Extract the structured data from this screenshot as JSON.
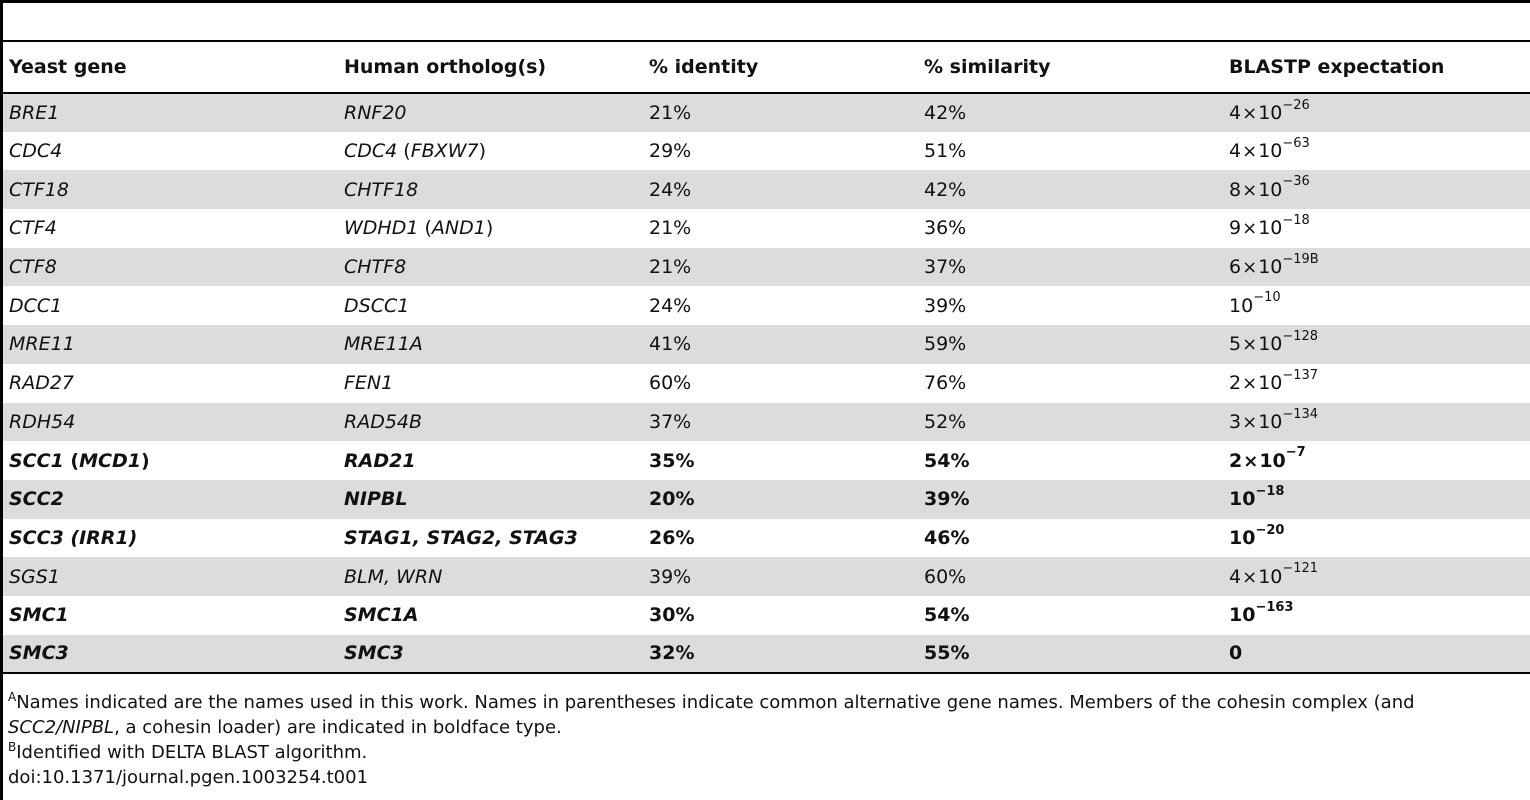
{
  "table": {
    "headers": [
      "Yeast gene",
      "Human ortholog(s)",
      "% identity",
      "% similarity",
      "BLASTP expectation"
    ],
    "rows": [
      {
        "yeast": "BRE1",
        "human": [
          {
            "t": "RNF20",
            "i": true
          }
        ],
        "identity": "21%",
        "similarity": "42%",
        "mant": "4",
        "exp": "−26",
        "sup": "",
        "bold": false
      },
      {
        "yeast": "CDC4",
        "human": [
          {
            "t": "CDC4",
            "i": true
          },
          {
            "t": " (",
            "i": false
          },
          {
            "t": "FBXW7",
            "i": true
          },
          {
            "t": ")",
            "i": false
          }
        ],
        "identity": "29%",
        "similarity": "51%",
        "mant": "4",
        "exp": "−63",
        "sup": "",
        "bold": false
      },
      {
        "yeast": "CTF18",
        "human": [
          {
            "t": "CHTF18",
            "i": true
          }
        ],
        "identity": "24%",
        "similarity": "42%",
        "mant": "8",
        "exp": "−36",
        "sup": "",
        "bold": false
      },
      {
        "yeast": "CTF4",
        "human": [
          {
            "t": "WDHD1",
            "i": true
          },
          {
            "t": " (",
            "i": false
          },
          {
            "t": "AND1",
            "i": true
          },
          {
            "t": ")",
            "i": false
          }
        ],
        "identity": "21%",
        "similarity": "36%",
        "mant": "9",
        "exp": "−18",
        "sup": "",
        "bold": false
      },
      {
        "yeast": "CTF8",
        "human": [
          {
            "t": "CHTF8",
            "i": true
          }
        ],
        "identity": "21%",
        "similarity": "37%",
        "mant": "6",
        "exp": "−19",
        "sup": "B",
        "bold": false
      },
      {
        "yeast": "DCC1",
        "human": [
          {
            "t": "DSCC1",
            "i": true
          }
        ],
        "identity": "24%",
        "similarity": "39%",
        "mant": "",
        "exp": "−10",
        "sup": "",
        "bold": false
      },
      {
        "yeast": "MRE11",
        "human": [
          {
            "t": "MRE11A",
            "i": true
          }
        ],
        "identity": "41%",
        "similarity": "59%",
        "mant": "5",
        "exp": "−128",
        "sup": "",
        "bold": false
      },
      {
        "yeast": "RAD27",
        "human": [
          {
            "t": "FEN1",
            "i": true
          }
        ],
        "identity": "60%",
        "similarity": "76%",
        "mant": "2",
        "exp": "−137",
        "sup": "",
        "bold": false
      },
      {
        "yeast": "RDH54",
        "human": [
          {
            "t": "RAD54B",
            "i": true
          }
        ],
        "identity": "37%",
        "similarity": "52%",
        "mant": "3",
        "exp": "−134",
        "sup": "",
        "bold": false
      },
      {
        "yeast_parts": [
          {
            "t": "SCC1",
            "i": true
          },
          {
            "t": " (",
            "i": false
          },
          {
            "t": "MCD1",
            "i": true
          },
          {
            "t": ")",
            "i": false
          }
        ],
        "human": [
          {
            "t": "RAD21",
            "i": true
          }
        ],
        "identity": "35%",
        "similarity": "54%",
        "mant": "2",
        "exp": "−7",
        "sup": "",
        "bold": true
      },
      {
        "yeast": "SCC2",
        "human": [
          {
            "t": "NIPBL",
            "i": true
          }
        ],
        "identity": "20%",
        "similarity": "39%",
        "mant": "",
        "exp": "−18",
        "sup": "",
        "bold": true
      },
      {
        "yeast": "SCC3 (IRR1)",
        "human": [
          {
            "t": "STAG1, STAG2, STAG3",
            "i": true
          }
        ],
        "identity": "26%",
        "similarity": "46%",
        "mant": "",
        "exp": "−20",
        "sup": "",
        "bold": true
      },
      {
        "yeast": "SGS1",
        "human": [
          {
            "t": "BLM, WRN",
            "i": true
          }
        ],
        "identity": "39%",
        "similarity": "60%",
        "mant": "4",
        "exp": "−121",
        "sup": "",
        "bold": false
      },
      {
        "yeast": "SMC1",
        "human": [
          {
            "t": "SMC1A",
            "i": true
          }
        ],
        "identity": "30%",
        "similarity": "54%",
        "mant": "",
        "exp": "−163",
        "sup": "",
        "bold": true
      },
      {
        "yeast": "SMC3",
        "human": [
          {
            "t": "SMC3",
            "i": true
          }
        ],
        "identity": "32%",
        "similarity": "55%",
        "mant": "",
        "exp": "",
        "zero": "0",
        "sup": "",
        "bold": true
      }
    ]
  },
  "notes": {
    "a_mark": "A",
    "a_text_1": "Names indicated are the names used in this work. Names in parentheses indicate common alternative gene names. Members of the cohesin complex (and ",
    "a_text_italic": "SCC2/NIPBL",
    "a_text_2": ", a cohesin loader) are indicated in boldface type.",
    "b_mark": "B",
    "b_text": "Identified with DELTA BLAST algorithm.",
    "doi": "doi:10.1371/journal.pgen.1003254.t001"
  }
}
